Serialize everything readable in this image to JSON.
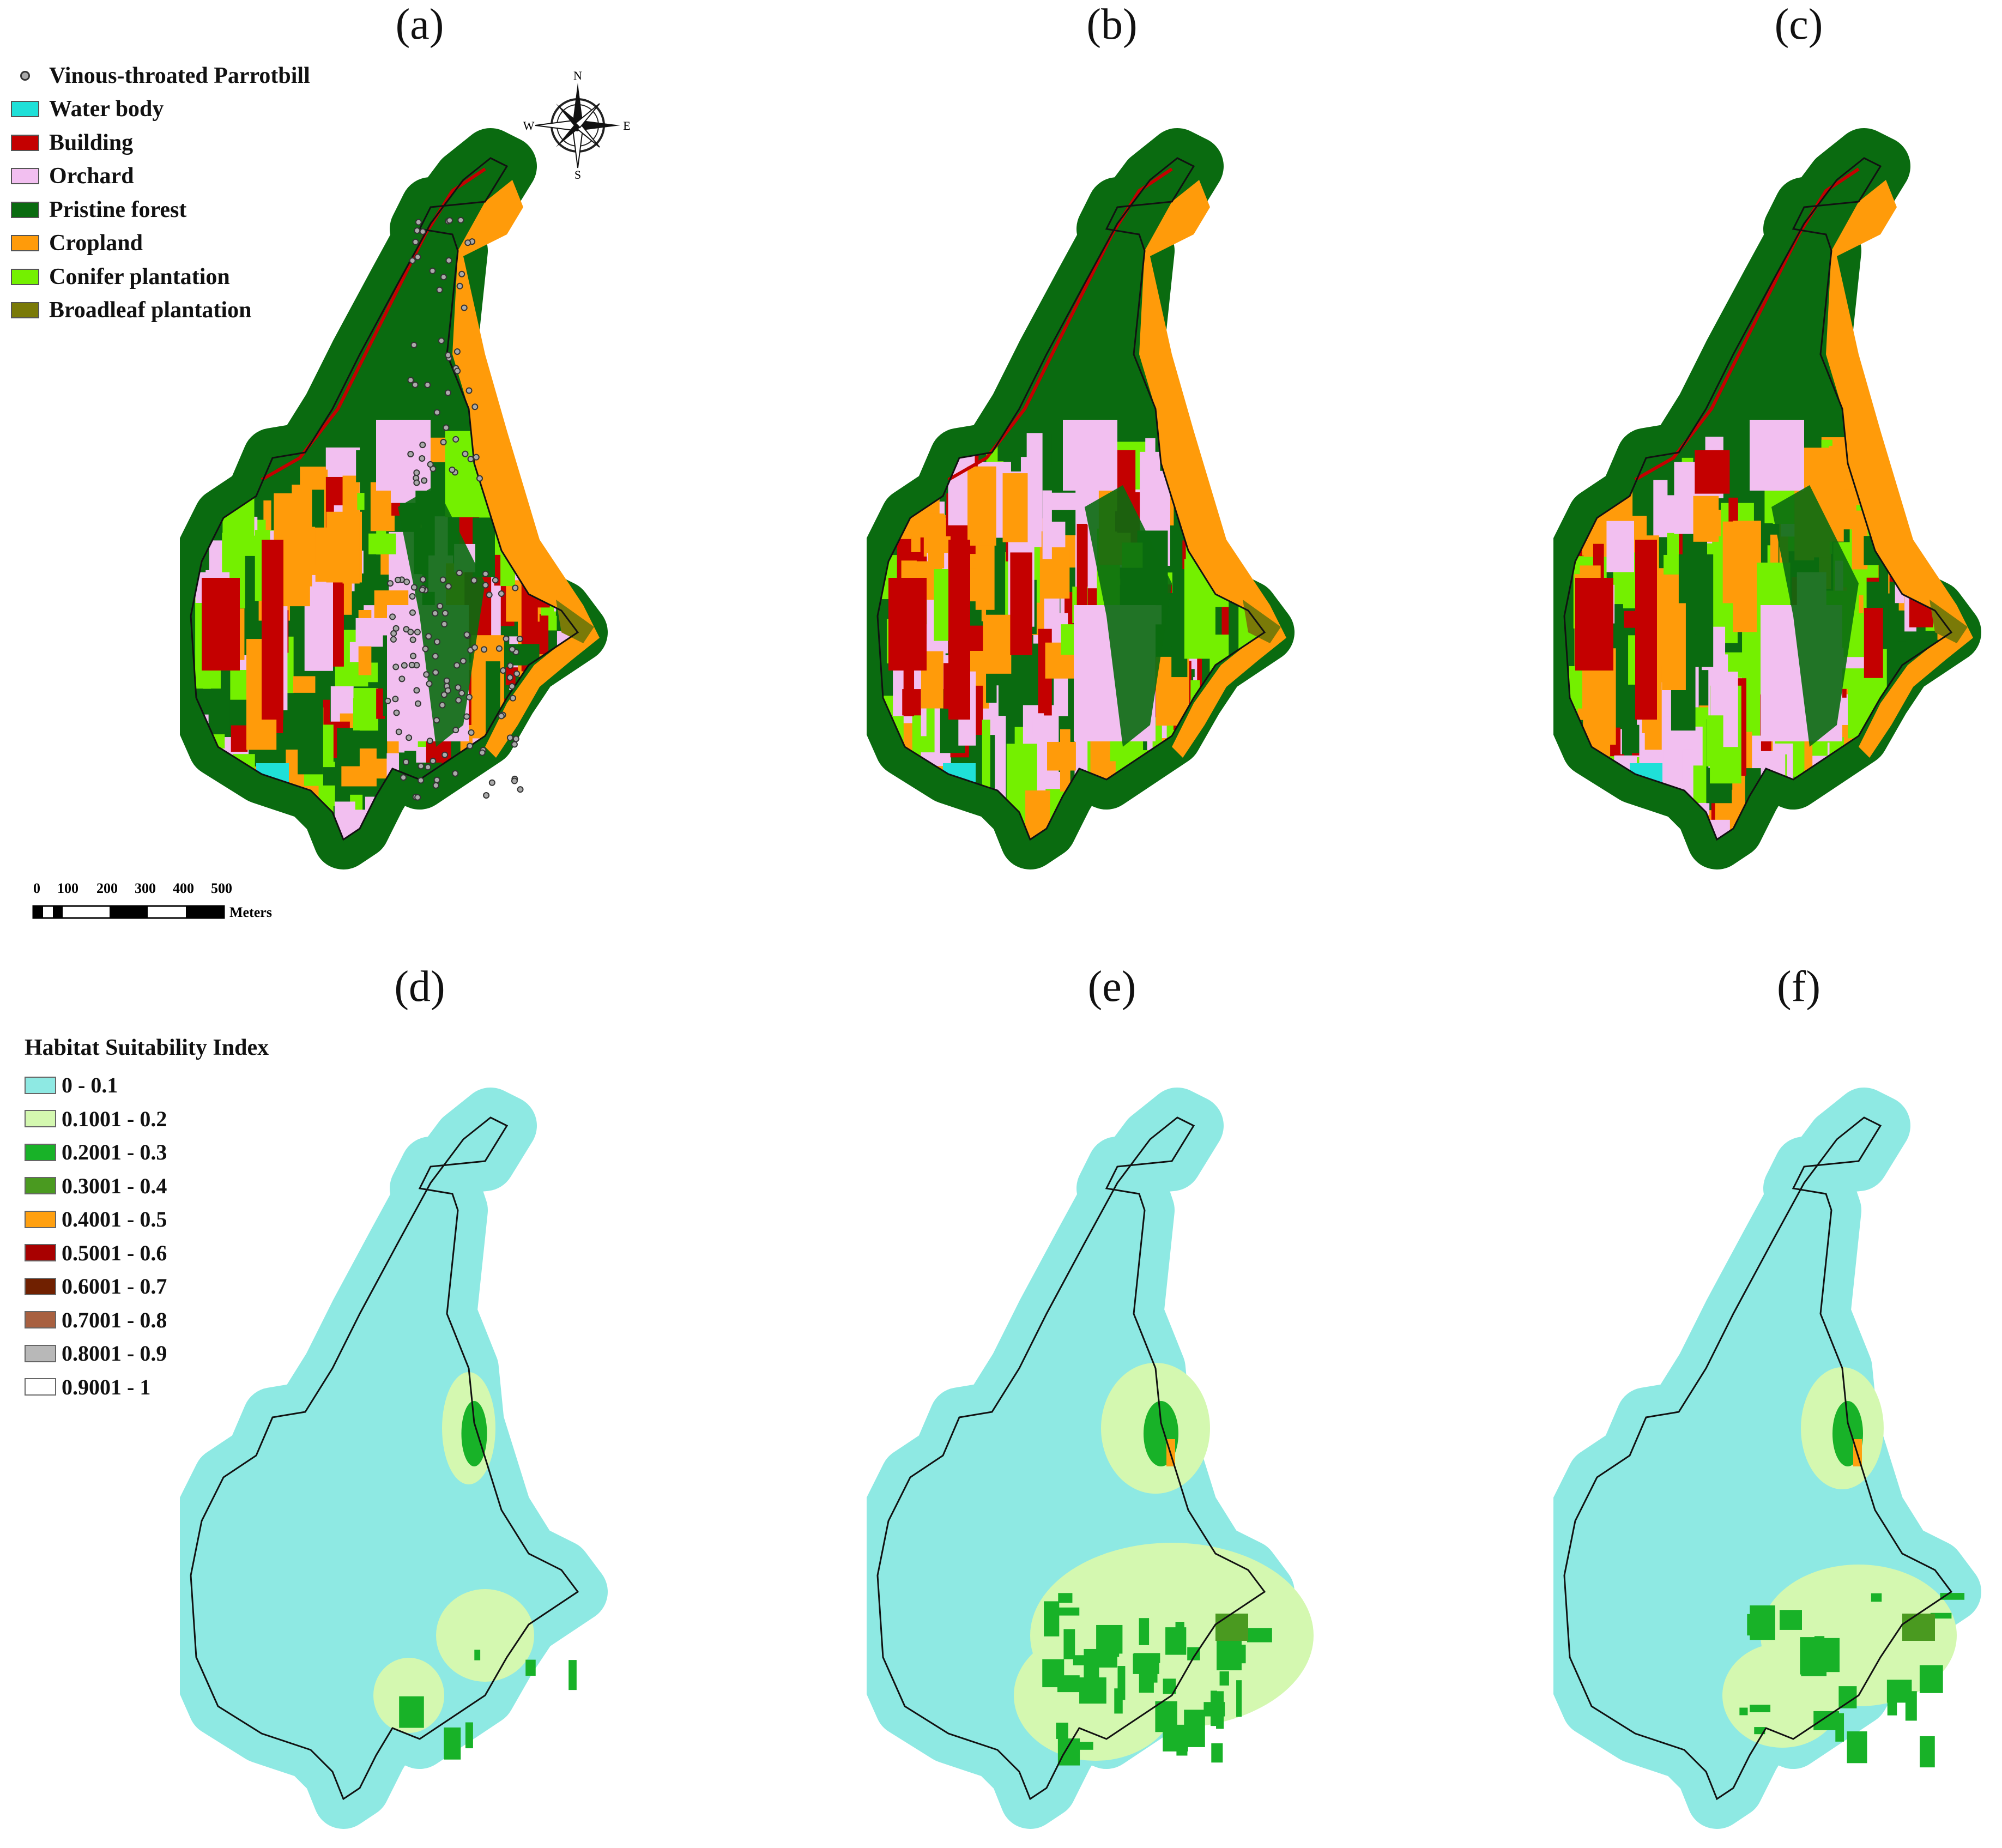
{
  "panels": {
    "a": "(a)",
    "b": "(b)",
    "c": "(c)",
    "d": "(d)",
    "e": "(e)",
    "f": "(f)"
  },
  "landcover_legend": {
    "point_label": "Vinous-throated Parrotbill",
    "items": [
      {
        "label": "Water body",
        "color": "#1fe0d8"
      },
      {
        "label": "Building",
        "color": "#c40000"
      },
      {
        "label": "Orchard",
        "color": "#f2bff0"
      },
      {
        "label": "Pristine forest",
        "color": "#0a6b10"
      },
      {
        "label": "Cropland",
        "color": "#ff9b0a"
      },
      {
        "label": "Conifer plantation",
        "color": "#74f000"
      },
      {
        "label": "Broadleaf plantation",
        "color": "#7a7a08"
      }
    ]
  },
  "hsi_legend": {
    "title": "Habitat Suitability Index",
    "items": [
      {
        "label": "0 - 0.1",
        "color": "#8ee9e3"
      },
      {
        "label": "0.1001 - 0.2",
        "color": "#d4f8b0"
      },
      {
        "label": "0.2001 - 0.3",
        "color": "#18b228"
      },
      {
        "label": "0.3001 - 0.4",
        "color": "#4a9a20"
      },
      {
        "label": "0.4001 - 0.5",
        "color": "#ffa010"
      },
      {
        "label": "0.5001 - 0.6",
        "color": "#a80000"
      },
      {
        "label": "0.6001 - 0.7",
        "color": "#702000"
      },
      {
        "label": "0.7001 - 0.8",
        "color": "#a86040"
      },
      {
        "label": "0.8001 - 0.9",
        "color": "#b8b8b8"
      },
      {
        "label": "0.9001 - 1",
        "color": "#ffffff"
      }
    ]
  },
  "scalebar": {
    "ticks": [
      "0",
      "100",
      "200",
      "300",
      "400",
      "500"
    ],
    "unit": "Meters"
  },
  "compass": {
    "n": "N",
    "s": "S",
    "e": "E",
    "w": "W"
  }
}
